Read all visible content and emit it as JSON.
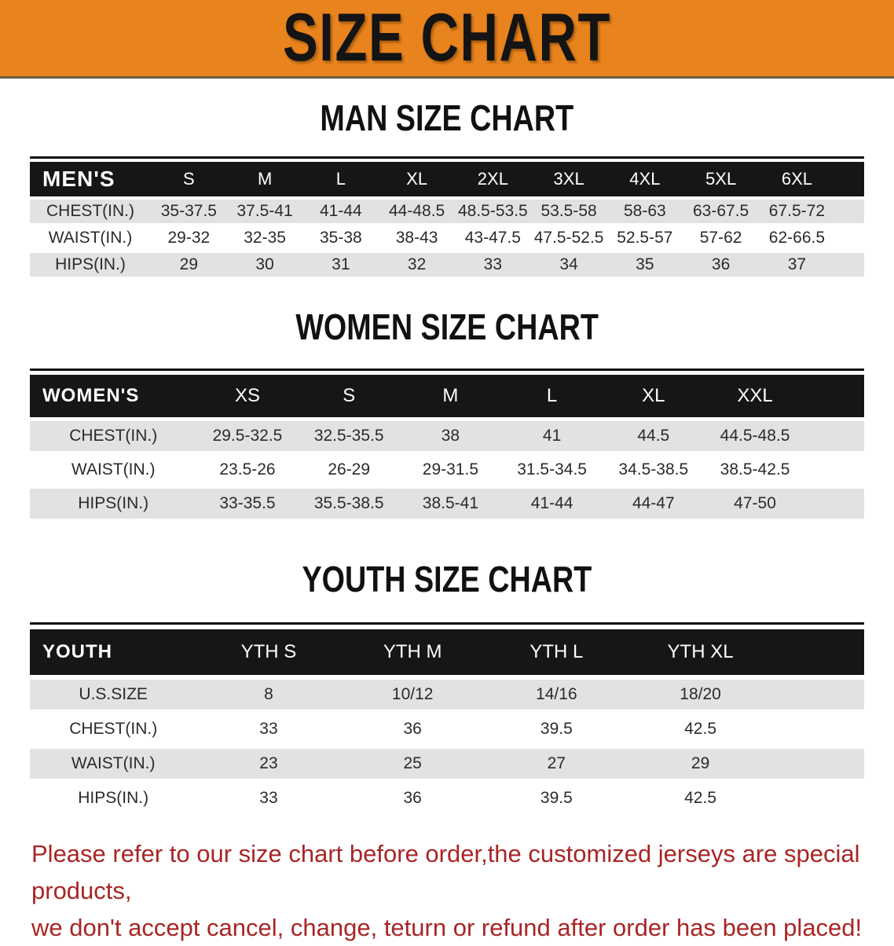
{
  "banner": {
    "title": "SIZE CHART",
    "bg_color": "#E8831D"
  },
  "sections": [
    {
      "heading": "MAN SIZE CHART",
      "table": {
        "label": "MEN'S",
        "columns": [
          "S",
          "M",
          "L",
          "XL",
          "2XL",
          "3XL",
          "4XL",
          "5XL",
          "6XL"
        ],
        "rows": [
          {
            "label": "CHEST(IN.)",
            "values": [
              "35-37.5",
              "37.5-41",
              "41-44",
              "44-48.5",
              "48.5-53.5",
              "53.5-58",
              "58-63",
              "63-67.5",
              "67.5-72"
            ]
          },
          {
            "label": "WAIST(IN.)",
            "values": [
              "29-32",
              "32-35",
              "35-38",
              "38-43",
              "43-47.5",
              "47.5-52.5",
              "52.5-57",
              "57-62",
              "62-66.5"
            ]
          },
          {
            "label": "HIPS(IN.)",
            "values": [
              "29",
              "30",
              "31",
              "32",
              "33",
              "34",
              "35",
              "36",
              "37"
            ]
          }
        ]
      }
    },
    {
      "heading": "WOMEN SIZE CHART",
      "table": {
        "label": "WOMEN'S",
        "columns": [
          "XS",
          "S",
          "M",
          "L",
          "XL",
          "XXL"
        ],
        "rows": [
          {
            "label": "CHEST(IN.)",
            "values": [
              "29.5-32.5",
              "32.5-35.5",
              "38",
              "41",
              "44.5",
              "44.5-48.5"
            ]
          },
          {
            "label": "WAIST(IN.)",
            "values": [
              "23.5-26",
              "26-29",
              "29-31.5",
              "31.5-34.5",
              "34.5-38.5",
              "38.5-42.5"
            ]
          },
          {
            "label": "HIPS(IN.)",
            "values": [
              "33-35.5",
              "35.5-38.5",
              "38.5-41",
              "41-44",
              "44-47",
              "47-50"
            ]
          }
        ]
      }
    },
    {
      "heading": "YOUTH SIZE CHART",
      "table": {
        "label": "YOUTH",
        "columns": [
          "YTH S",
          "YTH M",
          "YTH L",
          "YTH XL"
        ],
        "rows": [
          {
            "label": "U.S.SIZE",
            "values": [
              "8",
              "10/12",
              "14/16",
              "18/20"
            ]
          },
          {
            "label": "CHEST(IN.)",
            "values": [
              "33",
              "36",
              "39.5",
              "42.5"
            ]
          },
          {
            "label": "WAIST(IN.)",
            "values": [
              "23",
              "25",
              "27",
              "29"
            ]
          },
          {
            "label": "HIPS(IN.)",
            "values": [
              "33",
              "36",
              "39.5",
              "42.5"
            ]
          }
        ]
      }
    }
  ],
  "footer": {
    "line1": "Please refer to our size chart before order,the customized jerseys are special products,",
    "line2": "we don't accept cancel, change, teturn or refund after order has been placed!",
    "text_color": "#A92525"
  },
  "colors": {
    "banner_bg": "#E8831D",
    "table_header_bar": "#161616",
    "row_stripe": "#E2E2E2",
    "footer_text": "#A92525"
  }
}
